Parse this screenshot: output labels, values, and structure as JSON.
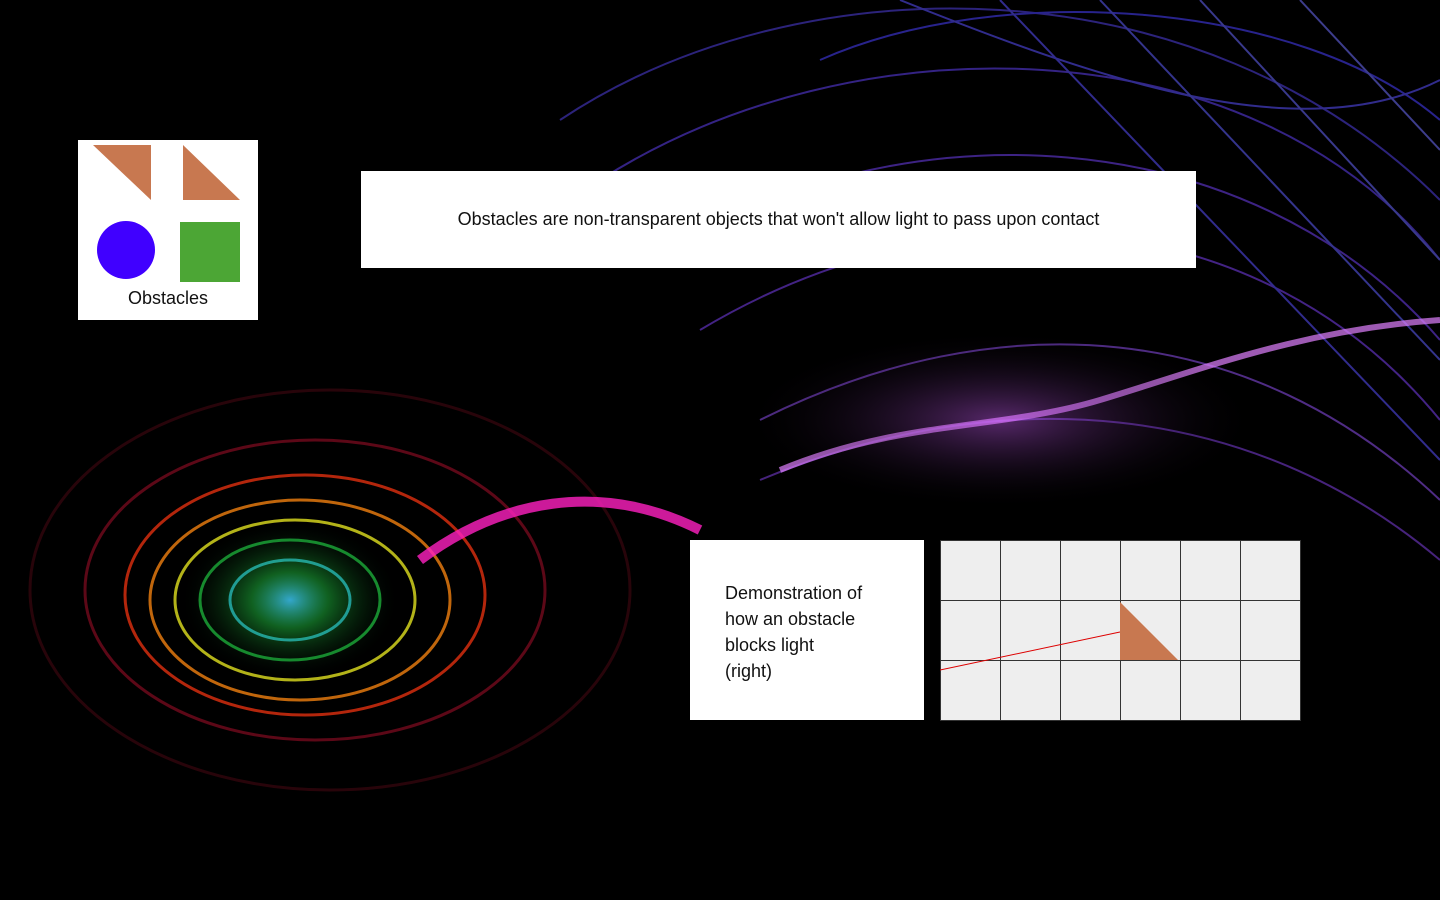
{
  "legend": {
    "label": "Obstacles",
    "items": [
      {
        "name": "triangle-obstacle-1",
        "color": "#c87850"
      },
      {
        "name": "triangle-obstacle-2",
        "color": "#c87850"
      },
      {
        "name": "circle-obstacle",
        "color": "#4000ff"
      },
      {
        "name": "square-obstacle",
        "color": "#4ca635"
      }
    ]
  },
  "info": {
    "text": "Obstacles are non-transparent objects that won't allow light to pass upon contact"
  },
  "demo": {
    "text": "Demonstration of\nhow an obstacle\nblocks light\n(right)",
    "grid": {
      "cols": 6,
      "rows": 3,
      "cell_color": "#eeeeee",
      "line_color": "#333333"
    },
    "obstacle_color": "#c87850",
    "beam_color": "#dd0000"
  }
}
